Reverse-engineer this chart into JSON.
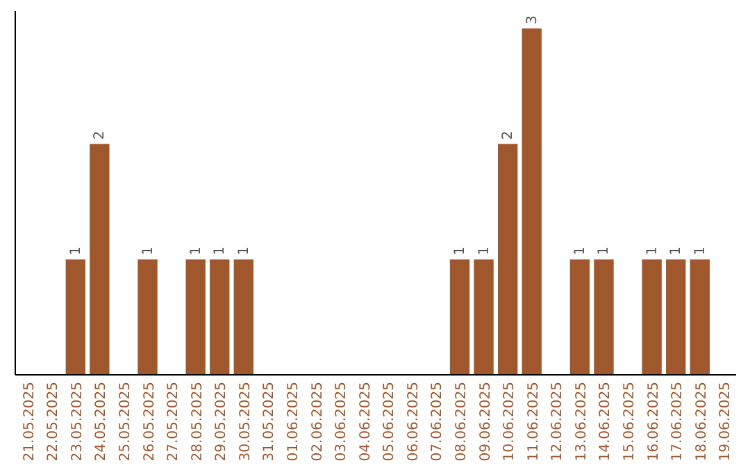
{
  "chart_data": {
    "type": "bar",
    "categories": [
      "21.05.2025",
      "22.05.2025",
      "23.05.2025",
      "24.05.2025",
      "25.05.2025",
      "26.05.2025",
      "27.05.2025",
      "28.05.2025",
      "29.05.2025",
      "30.05.2025",
      "31.05.2025",
      "01.06.2025",
      "02.06.2025",
      "03.06.2025",
      "04.06.2025",
      "05.06.2025",
      "06.06.2025",
      "07.06.2025",
      "08.06.2025",
      "09.06.2025",
      "10.06.2025",
      "11.06.2025",
      "12.06.2025",
      "13.06.2025",
      "14.06.2025",
      "15.06.2025",
      "16.06.2025",
      "17.06.2025",
      "18.06.2025",
      "19.06.2025"
    ],
    "values": [
      0,
      0,
      1,
      2,
      0,
      1,
      0,
      1,
      1,
      1,
      0,
      0,
      0,
      0,
      0,
      0,
      0,
      0,
      1,
      1,
      2,
      3,
      0,
      1,
      1,
      0,
      1,
      1,
      1,
      0
    ],
    "value_labels": [
      null,
      null,
      "1",
      "2",
      null,
      "1",
      null,
      "1",
      "1",
      "1",
      null,
      null,
      null,
      null,
      null,
      null,
      null,
      null,
      "1",
      "1",
      "2",
      "3",
      null,
      "1",
      "1",
      null,
      "1",
      "1",
      "1",
      null
    ],
    "color": "#a0572b",
    "ylim": [
      0,
      3.15
    ],
    "tick_labels": "x"
  }
}
